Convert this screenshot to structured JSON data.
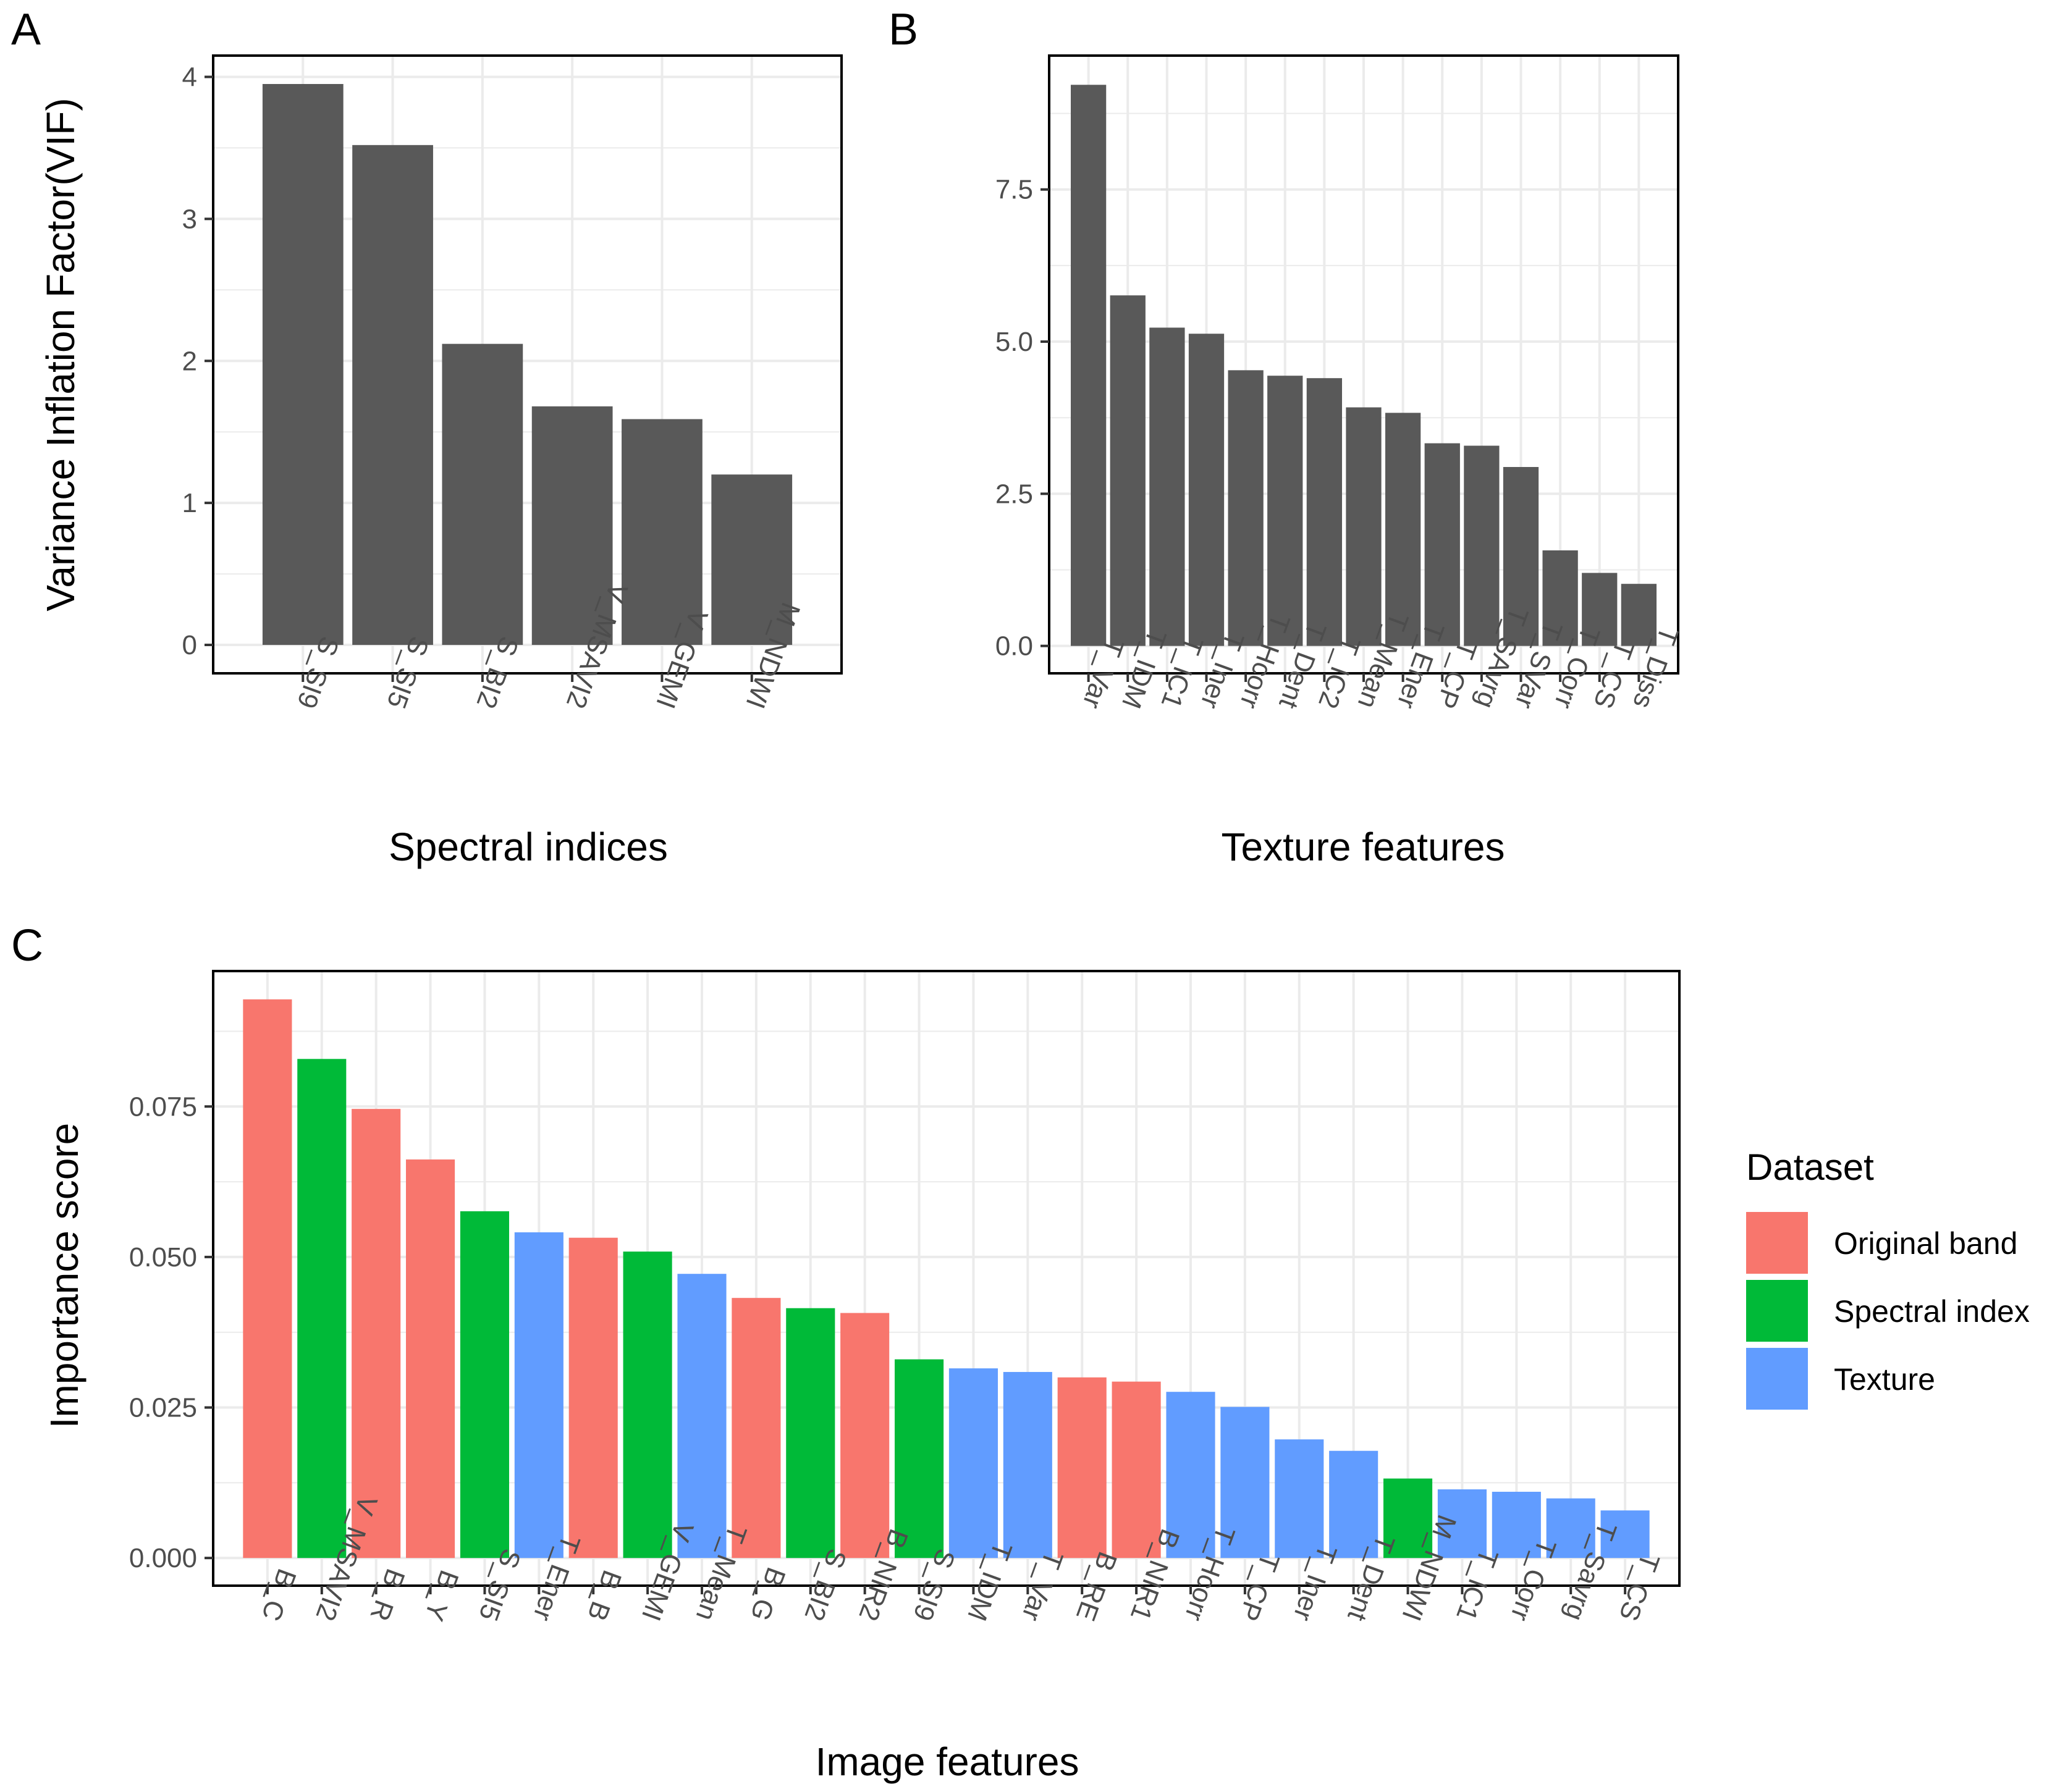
{
  "chart_data": [
    {
      "panel": "A",
      "type": "bar",
      "title": "",
      "xlabel": "Spectral indices",
      "ylabel": "Variance Inflation Factor(VIF)",
      "categories": [
        "S_SI9",
        "S_SI5",
        "S_BI2",
        "V_MSAVI2",
        "V_GEMI",
        "M_NDWI"
      ],
      "values": [
        3.95,
        3.52,
        2.12,
        1.68,
        1.59,
        1.2
      ],
      "ylim": [
        -0.2,
        4.15
      ],
      "yticks": [
        0,
        1,
        2,
        3,
        4
      ],
      "ytick_labels": [
        "0",
        "1",
        "2",
        "3",
        "4"
      ],
      "bar_color": "#595959",
      "grid": true
    },
    {
      "panel": "B",
      "type": "bar",
      "title": "",
      "xlabel": "Texture features",
      "ylabel": "",
      "categories": [
        "T_Var",
        "T_IDM",
        "T_IC1",
        "T_Iner",
        "T_Hcorr",
        "T_Dent",
        "T_IC2",
        "T_Mean",
        "T_Ener",
        "T_CP",
        "T_SAvrg",
        "T_SVar",
        "T_Corr",
        "T_CS",
        "T_Diss"
      ],
      "values": [
        9.22,
        5.76,
        5.23,
        5.13,
        4.53,
        4.44,
        4.4,
        3.92,
        3.83,
        3.33,
        3.29,
        2.94,
        1.57,
        1.2,
        1.02
      ],
      "ylim": [
        -0.45,
        9.7
      ],
      "yticks": [
        0,
        2.5,
        5,
        7.5
      ],
      "ytick_labels": [
        "0.0",
        "2.5",
        "5.0",
        "7.5"
      ],
      "bar_color": "#595959",
      "grid": true
    },
    {
      "panel": "C",
      "type": "bar",
      "title": "",
      "xlabel": "Image features",
      "ylabel": "Importance score",
      "categories": [
        "B_C",
        "V_MSAVI2",
        "B_R",
        "B_Y",
        "S_SI5",
        "T_Ener",
        "B_B",
        "V_GEMI",
        "T_Mean",
        "B_G",
        "S_BI2",
        "B_NIR2",
        "S_SI9",
        "T_IDM",
        "T_Var",
        "B_RE",
        "B_NIR1",
        "T_Hcorr",
        "T_CP",
        "T_Iner",
        "T_Dent",
        "M_NDWI",
        "T_IC1",
        "T_Corr",
        "T_Savrg",
        "T_CS"
      ],
      "values": [
        0.0928,
        0.0829,
        0.0746,
        0.0662,
        0.0576,
        0.0541,
        0.0532,
        0.0509,
        0.0472,
        0.0432,
        0.0415,
        0.0407,
        0.033,
        0.0315,
        0.0309,
        0.03,
        0.0293,
        0.0276,
        0.0251,
        0.0197,
        0.0178,
        0.0132,
        0.0114,
        0.011,
        0.0099,
        0.0079
      ],
      "groups": [
        "Original band",
        "Spectral index",
        "Original band",
        "Original band",
        "Spectral index",
        "Texture",
        "Original band",
        "Spectral index",
        "Texture",
        "Original band",
        "Spectral index",
        "Original band",
        "Spectral index",
        "Texture",
        "Texture",
        "Original band",
        "Original band",
        "Texture",
        "Texture",
        "Texture",
        "Texture",
        "Spectral index",
        "Texture",
        "Texture",
        "Texture",
        "Texture"
      ],
      "ylim": [
        -0.0046,
        0.0975
      ],
      "yticks": [
        0,
        0.025,
        0.05,
        0.075
      ],
      "ytick_labels": [
        "0.000",
        "0.025",
        "0.050",
        "0.075"
      ],
      "grid": true,
      "legend": {
        "title": "Dataset",
        "position": "right",
        "entries": [
          {
            "label": "Original band",
            "color": "#F8766D"
          },
          {
            "label": "Spectral index",
            "color": "#00BA38"
          },
          {
            "label": "Texture",
            "color": "#619CFF"
          }
        ]
      }
    }
  ]
}
